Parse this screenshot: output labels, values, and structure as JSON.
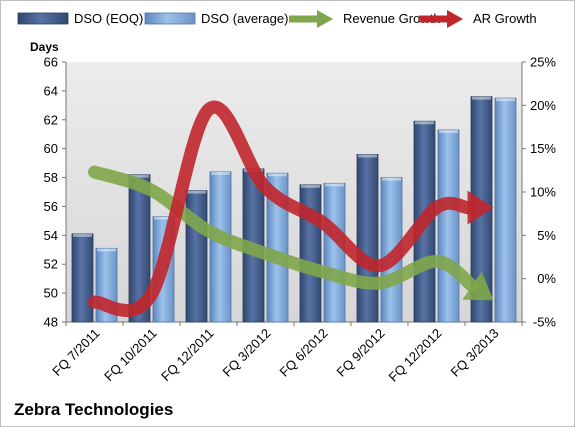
{
  "chart_data": {
    "type": "bar",
    "title": "",
    "company": "Zebra Technologies",
    "ylabel": "Days",
    "categories": [
      "FQ 7/2011",
      "FQ 10/2011",
      "FQ 12/2011",
      "FQ 3/2012",
      "FQ 6/2012",
      "FQ 9/2012",
      "FQ 12/2012",
      "FQ 3/2013"
    ],
    "ylim": [
      48,
      66
    ],
    "yticks": [
      48,
      50,
      52,
      54,
      56,
      58,
      60,
      62,
      64,
      66
    ],
    "y2lim": [
      -5,
      25
    ],
    "y2ticks": [
      -5,
      0,
      5,
      10,
      15,
      20,
      25
    ],
    "y2tick_suffix": "%",
    "grid": false,
    "legend_position": "top",
    "series": [
      {
        "name": "DSO (EOQ)",
        "type": "bar",
        "axis": "left",
        "color": "#4f6a9a",
        "values": [
          54.1,
          58.2,
          57.1,
          58.6,
          57.5,
          59.6,
          61.9,
          63.6
        ]
      },
      {
        "name": "DSO (average)",
        "type": "bar",
        "axis": "left",
        "color": "#7ea6d6",
        "values": [
          53.1,
          55.3,
          58.4,
          58.3,
          57.6,
          58.0,
          61.3,
          63.5
        ]
      },
      {
        "name": "Revenue Growth",
        "type": "line",
        "axis": "right",
        "color": "#7fa64a",
        "values": [
          12.3,
          10.2,
          5.5,
          2.9,
          0.8,
          -0.5,
          2.0,
          -2.5
        ]
      },
      {
        "name": "AR Growth",
        "type": "line",
        "axis": "right",
        "color": "#c0262c",
        "values": [
          -2.7,
          -1.8,
          19.5,
          10.5,
          6.5,
          1.5,
          8.2,
          8.2
        ]
      }
    ]
  }
}
